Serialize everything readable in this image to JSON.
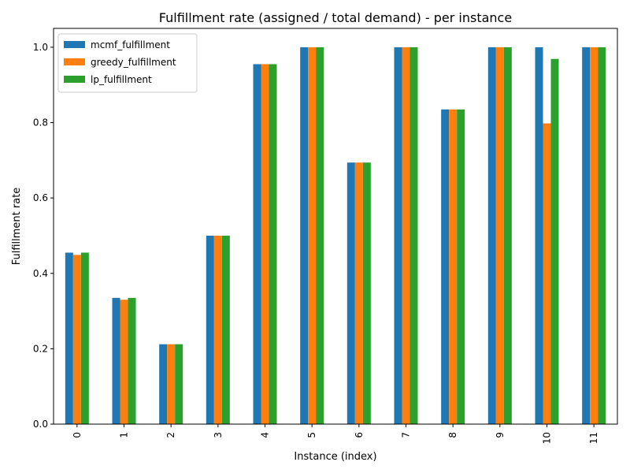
{
  "chart_data": {
    "type": "bar",
    "title": "Fulfillment rate (assigned / total demand) - per instance",
    "xlabel": "Instance (index)",
    "ylabel": "Fulfillment rate",
    "categories": [
      "0",
      "1",
      "2",
      "3",
      "4",
      "5",
      "6",
      "7",
      "8",
      "9",
      "10",
      "11"
    ],
    "series": [
      {
        "name": "mcmf_fulfillment",
        "color": "#1f77b4",
        "values": [
          0.455,
          0.335,
          0.212,
          0.5,
          0.955,
          1.0,
          0.694,
          1.0,
          0.835,
          1.0,
          1.0,
          1.0
        ]
      },
      {
        "name": "greedy_fulfillment",
        "color": "#ff7f0e",
        "values": [
          0.449,
          0.33,
          0.212,
          0.5,
          0.955,
          1.0,
          0.694,
          1.0,
          0.835,
          1.0,
          0.798,
          1.0
        ]
      },
      {
        "name": "lp_fulfillment",
        "color": "#2ca02c",
        "values": [
          0.455,
          0.335,
          0.212,
          0.5,
          0.955,
          1.0,
          0.694,
          1.0,
          0.835,
          1.0,
          0.969,
          1.0
        ]
      }
    ],
    "ylim": [
      0,
      1.05
    ],
    "yticks": [
      0.0,
      0.2,
      0.4,
      0.6,
      0.8,
      1.0
    ],
    "ytick_labels": [
      "0.0",
      "0.2",
      "0.4",
      "0.6",
      "0.8",
      "1.0"
    ],
    "grid": false,
    "legend_position": "top-left"
  }
}
